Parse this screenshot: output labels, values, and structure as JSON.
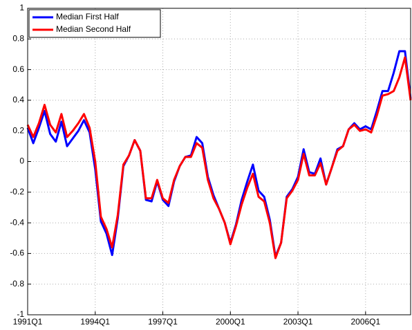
{
  "chart_data": {
    "type": "line",
    "categories": [
      "1991Q1",
      null,
      null,
      null,
      null,
      null,
      null,
      null,
      null,
      null,
      null,
      null,
      "1994Q1",
      null,
      null,
      null,
      null,
      null,
      null,
      null,
      null,
      null,
      null,
      null,
      "1997Q1",
      null,
      null,
      null,
      null,
      null,
      null,
      null,
      null,
      null,
      null,
      null,
      "2000Q1",
      null,
      null,
      null,
      null,
      null,
      null,
      null,
      null,
      null,
      null,
      null,
      "2003Q1",
      null,
      null,
      null,
      null,
      null,
      null,
      null,
      null,
      null,
      null,
      null,
      "2006Q1",
      null,
      null,
      null,
      null,
      null,
      null,
      null,
      null
    ],
    "series": [
      {
        "name": "Median First Half",
        "color": "#0000ff",
        "values": [
          0.22,
          0.12,
          0.22,
          0.33,
          0.18,
          0.13,
          0.26,
          0.1,
          0.15,
          0.2,
          0.27,
          0.19,
          -0.05,
          -0.39,
          -0.47,
          -0.61,
          -0.37,
          -0.03,
          0.04,
          0.14,
          0.07,
          -0.25,
          -0.26,
          -0.13,
          -0.25,
          -0.29,
          -0.13,
          -0.03,
          0.03,
          0.04,
          0.16,
          0.12,
          -0.1,
          -0.22,
          -0.31,
          -0.4,
          -0.53,
          -0.41,
          -0.25,
          -0.13,
          -0.02,
          -0.19,
          -0.23,
          -0.38,
          -0.62,
          -0.53,
          -0.23,
          -0.18,
          -0.1,
          0.08,
          -0.07,
          -0.08,
          0.02,
          -0.15,
          -0.04,
          0.08,
          0.1,
          0.21,
          0.25,
          0.21,
          0.23,
          0.21,
          0.33,
          0.46,
          0.46,
          0.58,
          0.72,
          0.72,
          0.41
        ]
      },
      {
        "name": "Median Second Half",
        "color": "#ff0000",
        "values": [
          0.24,
          0.16,
          0.25,
          0.37,
          0.24,
          0.19,
          0.31,
          0.16,
          0.2,
          0.25,
          0.31,
          0.22,
          0.0,
          -0.36,
          -0.44,
          -0.56,
          -0.35,
          -0.02,
          0.04,
          0.14,
          0.07,
          -0.24,
          -0.24,
          -0.12,
          -0.24,
          -0.27,
          -0.12,
          -0.03,
          0.03,
          0.03,
          0.12,
          0.09,
          -0.12,
          -0.24,
          -0.31,
          -0.4,
          -0.54,
          -0.42,
          -0.28,
          -0.17,
          -0.08,
          -0.23,
          -0.26,
          -0.4,
          -0.63,
          -0.53,
          -0.24,
          -0.19,
          -0.12,
          0.05,
          -0.09,
          -0.09,
          -0.01,
          -0.15,
          -0.04,
          0.07,
          0.1,
          0.21,
          0.24,
          0.2,
          0.21,
          0.19,
          0.3,
          0.43,
          0.44,
          0.46,
          0.55,
          0.68,
          0.4
        ]
      }
    ],
    "ylim": [
      -1,
      1
    ],
    "yticks": [
      -1,
      -0.8,
      -0.6,
      -0.4,
      -0.2,
      0,
      0.2,
      0.4,
      0.6,
      0.8,
      1
    ],
    "grid": true,
    "legend": "upper-left"
  }
}
